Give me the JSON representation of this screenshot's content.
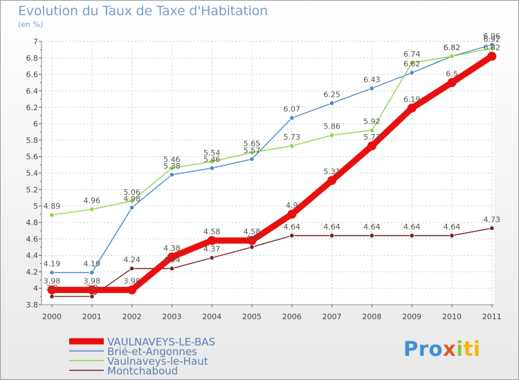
{
  "title": "Evolution du Taux de Taxe d'Habitation",
  "subtitle": "(en %)",
  "logo": {
    "p1": "Pro",
    "p2": "x",
    "p3": "i",
    "p4": "ti"
  },
  "chart_data": {
    "type": "line",
    "title": "Evolution du Taux de Taxe d'Habitation",
    "subtitle": "(en %)",
    "x": [
      "2000",
      "2001",
      "2002",
      "2003",
      "2004",
      "2005",
      "2006",
      "2007",
      "2008",
      "2009",
      "2010",
      "2011"
    ],
    "ylim": [
      3.8,
      7
    ],
    "yticks": [
      "3.8",
      "4",
      "4.2",
      "4.4",
      "4.6",
      "4.8",
      "5",
      "5.2",
      "5.4",
      "5.6",
      "5.8",
      "6",
      "6.2",
      "6.4",
      "6.6",
      "6.8",
      "7"
    ],
    "grid": true,
    "legend": "bottom-left",
    "series": [
      {
        "name": "VAULNAVEYS-LE-BAS",
        "color": "#e8100f",
        "values": [
          3.98,
          3.98,
          3.98,
          4.38,
          4.58,
          4.58,
          4.9,
          5.31,
          5.73,
          6.19,
          6.5,
          6.82
        ],
        "labels": [
          "3.98",
          "3.98",
          "3.98",
          "4.38",
          "4.58",
          "4.58",
          "4.9",
          "5.31",
          "5.73",
          "6.19",
          "6.5",
          "6.82"
        ]
      },
      {
        "name": "Brié-et-Angonnes",
        "color": "#4a88c8",
        "values": [
          4.19,
          4.19,
          4.98,
          5.38,
          5.46,
          5.57,
          6.07,
          6.25,
          6.43,
          6.62,
          6.82,
          6.96
        ],
        "labels": [
          "4.19",
          "4.19",
          "4.98",
          "5.38",
          "5.46",
          "5.57",
          "6.07",
          "6.25",
          "6.43",
          "6.62",
          "6.82",
          "6.96"
        ]
      },
      {
        "name": "Vaulnaveys-le-Haut",
        "color": "#8ed44a",
        "values": [
          4.89,
          4.96,
          5.06,
          5.46,
          5.54,
          5.65,
          5.73,
          5.86,
          5.92,
          6.74,
          6.82,
          6.92
        ],
        "labels": [
          "4.89",
          "4.96",
          "5.06",
          "5.46",
          "5.54",
          "5.65",
          "5.73",
          "5.86",
          "5.92",
          "6.74",
          "6.82",
          "6.92"
        ]
      },
      {
        "name": "Montchaboud",
        "color": "#6e2525",
        "values": [
          3.9,
          3.9,
          4.24,
          4.24,
          4.37,
          4.5,
          4.64,
          4.64,
          4.64,
          4.64,
          4.64,
          4.73
        ],
        "labels": [
          "3.9",
          "3.9",
          "4.24",
          "4.24",
          "4.37",
          "4.5",
          "4.64",
          "4.64",
          "4.64",
          "4.64",
          "4.64",
          "4.73"
        ]
      }
    ]
  }
}
